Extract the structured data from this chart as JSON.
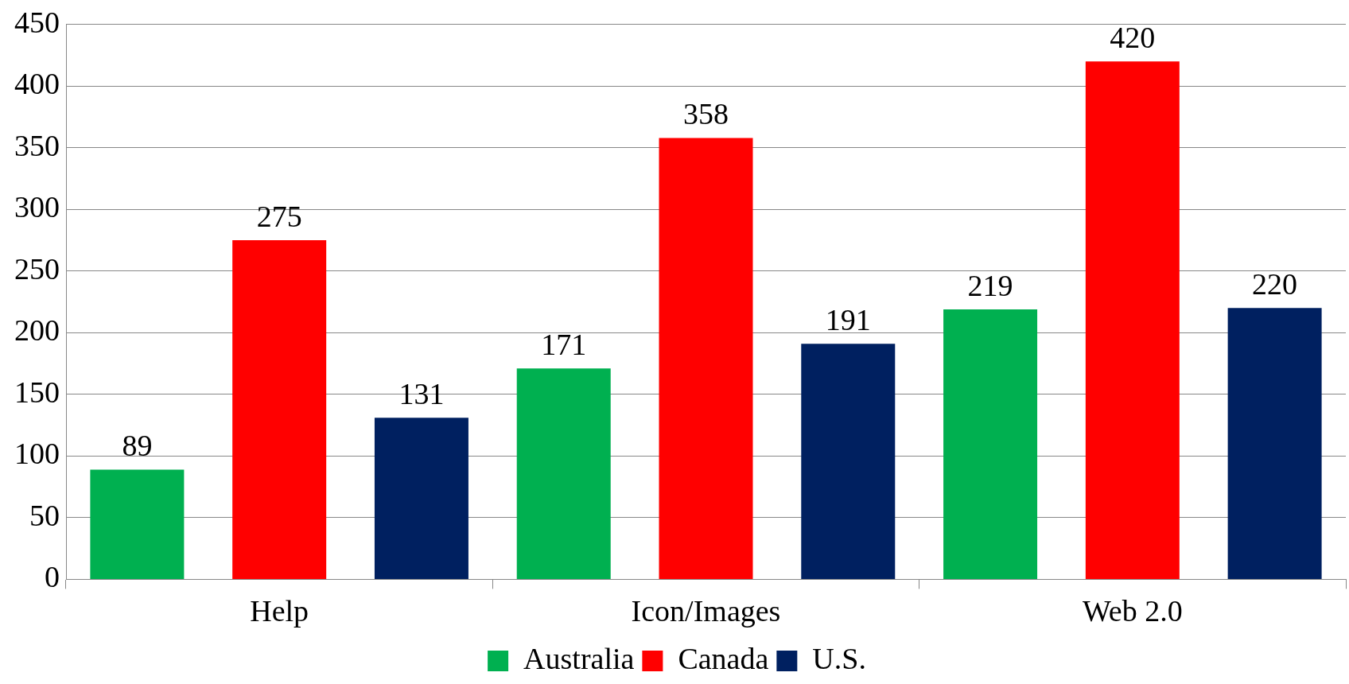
{
  "chart_data": {
    "type": "bar",
    "categories": [
      "Help",
      "Icon/Images",
      "Web 2.0"
    ],
    "series": [
      {
        "name": "Australia",
        "color": "#00b050",
        "values": [
          89,
          171,
          219
        ]
      },
      {
        "name": "Canada",
        "color": "#ff0000",
        "values": [
          275,
          358,
          420
        ]
      },
      {
        "name": "U.S.",
        "color": "#002060",
        "values": [
          131,
          191,
          220
        ]
      }
    ],
    "ylim": [
      0,
      450
    ],
    "yticks": [
      0,
      50,
      100,
      150,
      200,
      250,
      300,
      350,
      400,
      450
    ],
    "grid": "y",
    "legend": "bottom",
    "data_labels": true
  }
}
